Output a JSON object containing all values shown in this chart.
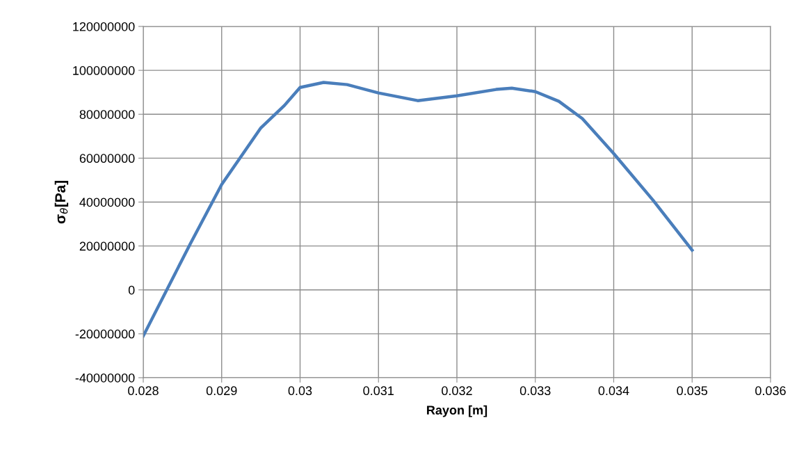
{
  "chart_data": {
    "type": "line",
    "xlabel": "Rayon [m]",
    "ylabel": "σ$_{θ}$[Pa]",
    "xlim": [
      0.028,
      0.036
    ],
    "xticks": [
      0.028,
      0.029,
      0.03,
      0.031,
      0.032,
      0.033,
      0.034,
      0.035,
      0.036
    ],
    "ylim": [
      -40000000,
      120000000
    ],
    "yticks": [
      -40000000,
      -20000000,
      0,
      20000000,
      40000000,
      60000000,
      80000000,
      100000000,
      120000000
    ],
    "grid": true,
    "legend": false,
    "marker": "none",
    "line_style": "solid",
    "series": [
      {
        "color": "#4a7ebb",
        "x": [
          0.028,
          0.0283,
          0.0286,
          0.029,
          0.0295,
          0.0298,
          0.03,
          0.0303,
          0.0306,
          0.031,
          0.0315,
          0.032,
          0.0325,
          0.0327,
          0.033,
          0.0333,
          0.0336,
          0.034,
          0.0345,
          0.035
        ],
        "values": [
          -21000000,
          0,
          21000000,
          48000000,
          73800000,
          84000000,
          92200000,
          94500000,
          93500000,
          89700000,
          86200000,
          88400000,
          91300000,
          91900000,
          90300000,
          85900000,
          78000000,
          62100000,
          40900000,
          18100000
        ]
      }
    ]
  }
}
